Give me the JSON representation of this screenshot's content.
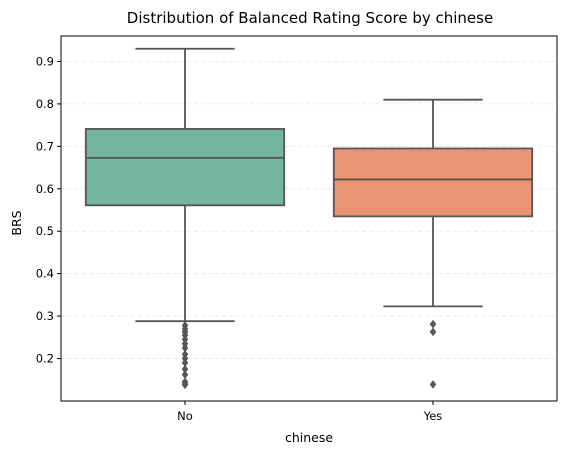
{
  "chart_data": {
    "type": "box",
    "title": "Distribution of Balanced Rating Score by chinese",
    "xlabel": "chinese",
    "ylabel": "BRS",
    "categories": [
      "No",
      "Yes"
    ],
    "ylim": [
      0.1,
      0.96
    ],
    "yticks": [
      0.2,
      0.3,
      0.4,
      0.5,
      0.6,
      0.7,
      0.8,
      0.9
    ],
    "y_grid": true,
    "boxes": [
      {
        "category": "No",
        "color": "#73b5a0",
        "whisker_low": 0.288,
        "q1": 0.561,
        "median": 0.673,
        "q3": 0.741,
        "whisker_high": 0.93,
        "outliers": [
          0.278,
          0.27,
          0.263,
          0.255,
          0.245,
          0.235,
          0.225,
          0.21,
          0.2,
          0.19,
          0.175,
          0.162,
          0.145,
          0.14,
          0.138
        ]
      },
      {
        "category": "Yes",
        "color": "#e99574",
        "whisker_low": 0.323,
        "q1": 0.535,
        "median": 0.622,
        "q3": 0.695,
        "whisker_high": 0.81,
        "outliers": [
          0.281,
          0.263,
          0.139
        ]
      }
    ],
    "line_color": "#555555",
    "grid_color": "#e6e6e6"
  }
}
